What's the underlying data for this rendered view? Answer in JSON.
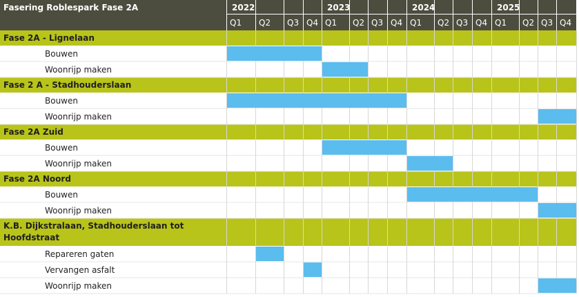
{
  "chart_data": {
    "type": "gantt",
    "title": "Fasering Roblespark Fase 2A",
    "years": [
      "2022",
      "2023",
      "2024",
      "2025"
    ],
    "quarters": [
      "Q1",
      "Q2",
      "Q3",
      "Q4",
      "Q1",
      "Q2",
      "Q3",
      "Q4",
      "Q1",
      "Q2",
      "Q3",
      "Q4",
      "Q1",
      "Q2",
      "Q3",
      "Q4"
    ],
    "groups": [
      {
        "label": "Fase 2A - Lignelaan",
        "tasks": [
          {
            "label": "Bouwen",
            "start": "2022 Q1",
            "end": "2022 Q4",
            "start_index": 0,
            "end_index": 3
          },
          {
            "label": "Woonrijp maken",
            "start": "2023 Q1",
            "end": "2023 Q2",
            "start_index": 4,
            "end_index": 5
          }
        ]
      },
      {
        "label": "Fase 2 A - Stadhouderslaan",
        "tasks": [
          {
            "label": "Bouwen",
            "start": "2022 Q1",
            "end": "2023 Q4",
            "start_index": 0,
            "end_index": 7
          },
          {
            "label": "Woonrijp maken",
            "start": "2025 Q3",
            "end": "2025 Q4",
            "start_index": 14,
            "end_index": 15
          }
        ]
      },
      {
        "label": "Fase 2A Zuid",
        "tasks": [
          {
            "label": "Bouwen",
            "start": "2023 Q1",
            "end": "2023 Q4",
            "start_index": 4,
            "end_index": 7
          },
          {
            "label": "Woonrijp maken",
            "start": "2024 Q1",
            "end": "2024 Q2",
            "start_index": 8,
            "end_index": 9
          }
        ]
      },
      {
        "label": "Fase 2A Noord",
        "tasks": [
          {
            "label": "Bouwen",
            "start": "2024 Q1",
            "end": "2025 Q2",
            "start_index": 8,
            "end_index": 13
          },
          {
            "label": "Woonrijp maken",
            "start": "2025 Q3",
            "end": "2025 Q4",
            "start_index": 14,
            "end_index": 15
          }
        ]
      },
      {
        "label": "K.B. Dijkstralaan, Stadhouderslaan tot Hoofdstraat",
        "label_lines": [
          "K.B. Dijkstralaan, Stadhouderslaan tot",
          "Hoofdstraat"
        ],
        "tasks": [
          {
            "label": "Repareren gaten",
            "start": "2022 Q2",
            "end": "2022 Q2",
            "start_index": 1,
            "end_index": 1
          },
          {
            "label": "Vervangen asfalt",
            "start": "2022 Q4",
            "end": "2022 Q4",
            "start_index": 3,
            "end_index": 3
          },
          {
            "label": "Woonrijp maken",
            "start": "2025 Q3",
            "end": "2025 Q4",
            "start_index": 14,
            "end_index": 15
          }
        ]
      }
    ],
    "colors": {
      "header_bg": "#4d4d3f",
      "group_bg": "#b8c41a",
      "bar": "#5bbcee",
      "header_text": "#ffffff",
      "grid": "#d7d7d7"
    }
  }
}
